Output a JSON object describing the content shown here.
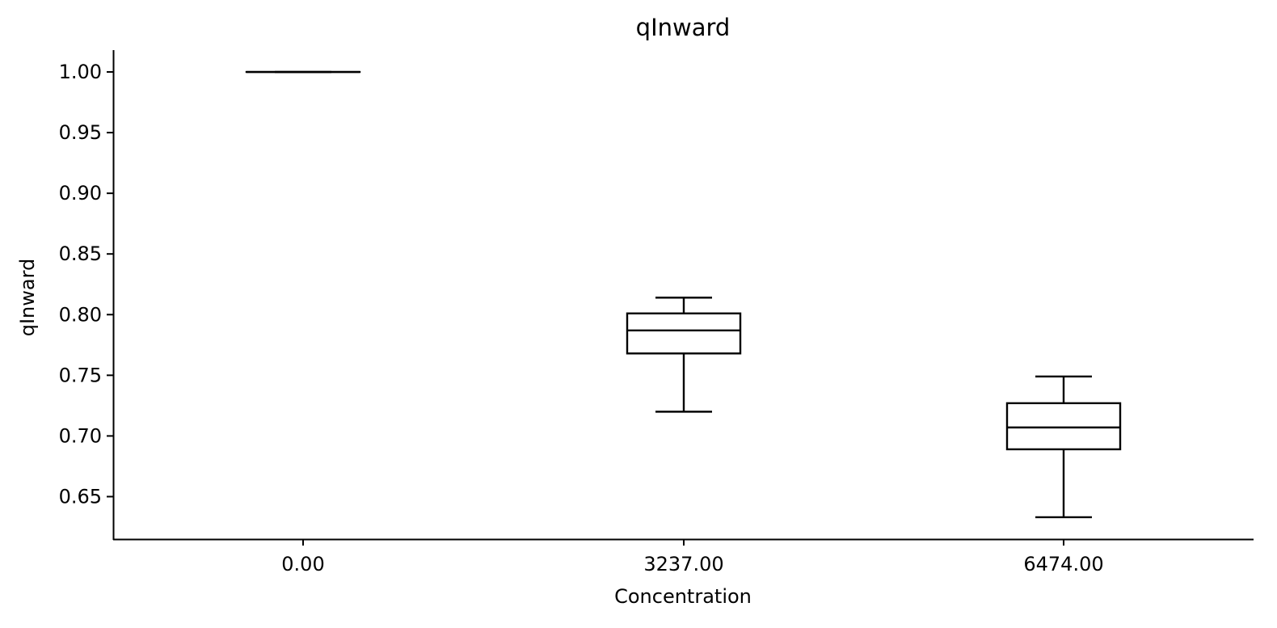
{
  "chart_data": {
    "type": "box",
    "title": "qInward",
    "xlabel": "Concentration",
    "ylabel": "qInward",
    "categories": [
      "0.00",
      "3237.00",
      "6474.00"
    ],
    "yticks": [
      0.65,
      0.7,
      0.75,
      0.8,
      0.85,
      0.9,
      0.95,
      1.0
    ],
    "ytick_labels": [
      "0.65",
      "0.70",
      "0.75",
      "0.80",
      "0.85",
      "0.90",
      "0.95",
      "1.00"
    ],
    "ylim": [
      0.615,
      1.018
    ],
    "boxes": [
      {
        "category": "0.00",
        "whisker_low": 1.0,
        "q1": 1.0,
        "median": 1.0,
        "q3": 1.0,
        "whisker_high": 1.0
      },
      {
        "category": "3237.00",
        "whisker_low": 0.72,
        "q1": 0.768,
        "median": 0.787,
        "q3": 0.801,
        "whisker_high": 0.814
      },
      {
        "category": "6474.00",
        "whisker_low": 0.633,
        "q1": 0.689,
        "median": 0.707,
        "q3": 0.727,
        "whisker_high": 0.749
      }
    ],
    "grid": false,
    "color": "#000000"
  }
}
